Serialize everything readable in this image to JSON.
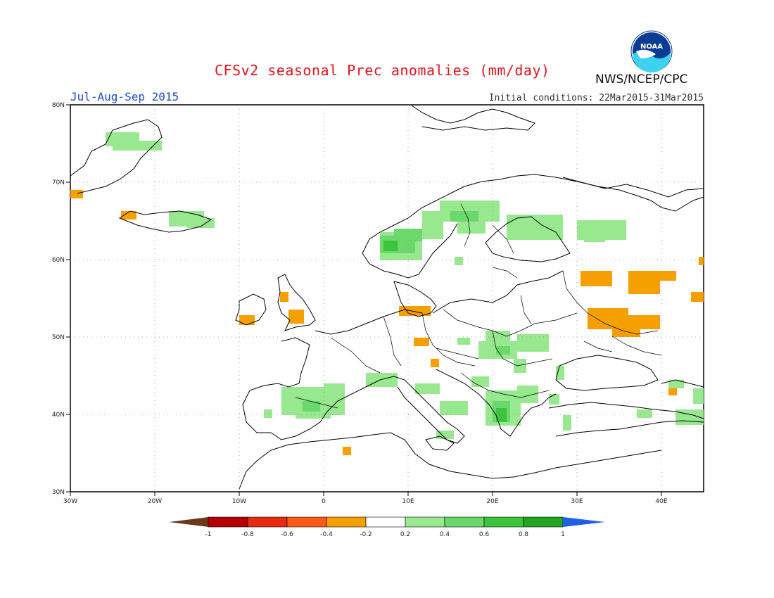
{
  "title": "CFSv2 seasonal Prec anomalies (mm/day)",
  "season": "Jul-Aug-Sep 2015",
  "initial_conditions": "Initial conditions: 22Mar2015-31Mar2015",
  "agency": "NWS/NCEP/CPC",
  "logo_text": "NOAA",
  "map": {
    "lon_range": [
      -30,
      45
    ],
    "lat_range": [
      30,
      80
    ],
    "x_ticks": [
      "30W",
      "20W",
      "10W",
      "0",
      "10E",
      "20E",
      "30E",
      "40E"
    ],
    "y_ticks": [
      "30N",
      "40N",
      "50N",
      "60N",
      "70N",
      "80N"
    ]
  },
  "colorbar": {
    "labels": [
      "-1",
      "-0.8",
      "-0.6",
      "-0.4",
      "-0.2",
      "0.2",
      "0.4",
      "0.6",
      "0.8",
      "1"
    ],
    "colors": {
      "lt_-1": "#6b3a1e",
      "-1_-0.8": "#b30000",
      "-0.8_-0.6": "#e62b12",
      "-0.6_-0.4": "#ff5a1a",
      "-0.4_-0.2": "#f5a000",
      "-0.2_0.2": "#ffffff",
      "0.2_0.4": "#98e890",
      "0.4_0.6": "#6ad86a",
      "0.6_0.8": "#3cc43c",
      "0.8_1": "#22a622",
      "gt_1": "#2060e8"
    }
  },
  "anomaly_colors": {
    "positive_light": "#98e890",
    "positive_mid": "#6ad86a",
    "positive_strong": "#3cc43c",
    "negative": "#f5a000"
  }
}
